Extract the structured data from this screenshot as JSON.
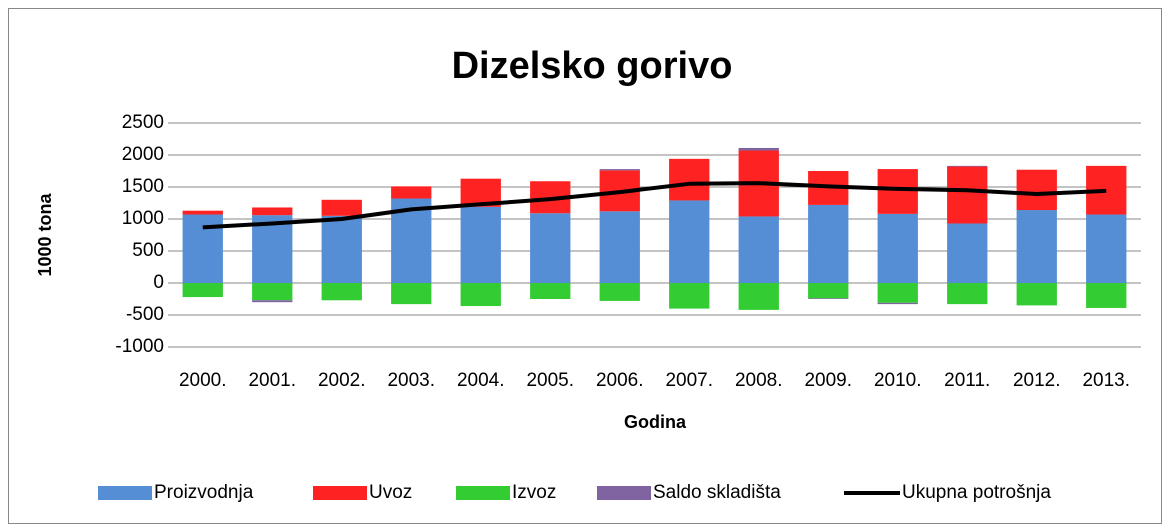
{
  "chart_data": {
    "type": "bar",
    "stacked": true,
    "title": "Dizelsko gorivo",
    "xlabel": "Godina",
    "ylabel": "1000 tona",
    "categories": [
      "2000.",
      "2001.",
      "2002.",
      "2003.",
      "2004.",
      "2005.",
      "2006.",
      "2007.",
      "2008.",
      "2009.",
      "2010.",
      "2011.",
      "2012.",
      "2013."
    ],
    "series": [
      {
        "name": "Proizvodnja",
        "type": "bar",
        "color": "#558ed5",
        "values": [
          1070,
          1060,
          1050,
          1320,
          1190,
          1090,
          1120,
          1290,
          1040,
          1220,
          1080,
          930,
          1140,
          1070
        ]
      },
      {
        "name": "Uvoz",
        "type": "bar",
        "color": "#ff2222",
        "values": [
          60,
          120,
          250,
          190,
          440,
          500,
          640,
          650,
          1030,
          530,
          700,
          890,
          630,
          760
        ]
      },
      {
        "name": "Izvoz",
        "type": "bar",
        "color": "#33cc33",
        "values": [
          -220,
          -270,
          -270,
          -330,
          -360,
          -250,
          -280,
          -400,
          -420,
          -240,
          -310,
          -330,
          -350,
          -390
        ]
      },
      {
        "name": "Saldo skladišta",
        "type": "bar",
        "color": "#8064a2",
        "values": [
          0,
          -30,
          0,
          0,
          0,
          0,
          20,
          0,
          40,
          -10,
          -20,
          10,
          0,
          0
        ]
      },
      {
        "name": "Ukupna potrošnja",
        "type": "line",
        "color": "#000000",
        "values": [
          870,
          930,
          1000,
          1150,
          1230,
          1310,
          1420,
          1550,
          1560,
          1510,
          1470,
          1450,
          1390,
          1440
        ]
      }
    ],
    "ylim": [
      -1000,
      2500
    ],
    "yticks": [
      -1000,
      -500,
      0,
      500,
      1000,
      1500,
      2000,
      2500
    ],
    "grid": true,
    "legend": "bottom"
  }
}
